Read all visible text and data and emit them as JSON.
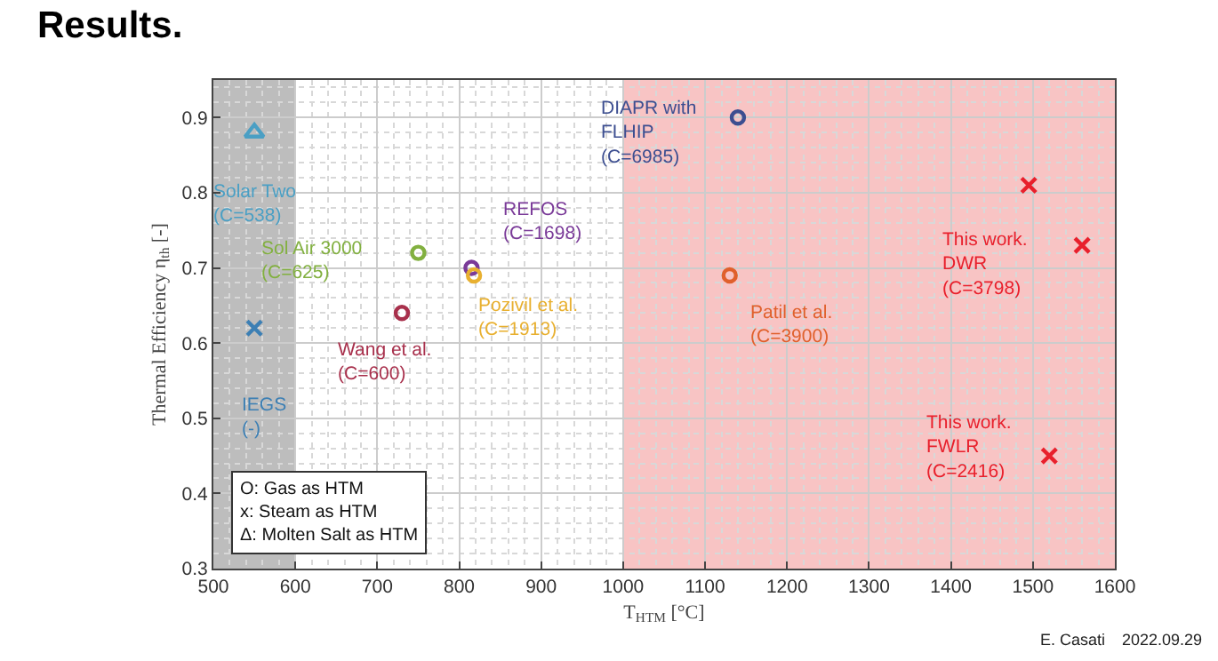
{
  "chart_data": {
    "type": "scatter",
    "title": "Results.",
    "xlabel": "T$_{HTM}$ [°C]",
    "ylabel": "Thermal Efficiency η$_{th}$ [-]",
    "xlim": [
      500,
      1600
    ],
    "xticks": [
      500,
      600,
      700,
      800,
      900,
      1000,
      1100,
      1200,
      1300,
      1400,
      1500,
      1600
    ],
    "ylim": [
      0.3,
      0.95
    ],
    "yticks": [
      0.3,
      0.4,
      0.5,
      0.6,
      0.7,
      0.8,
      0.9
    ],
    "grid": true,
    "legend": false,
    "bands": [
      {
        "axis": "x",
        "from": 500,
        "to": 600,
        "color": "#bdbdbd"
      },
      {
        "axis": "x",
        "from": 1000,
        "to": 1600,
        "color": "#f8c4c4"
      }
    ],
    "series": [
      {
        "name": "Solar Two\n(C=538)",
        "color": "#4a9fc4",
        "marker": "triangle",
        "x": [
          550
        ],
        "values": [
          0.88
        ]
      },
      {
        "name": "IEGS\n(-)",
        "color": "#3c7fb4",
        "marker": "cross",
        "x": [
          550
        ],
        "values": [
          0.62
        ]
      },
      {
        "name": "Sol Air 3000\n(C=625)",
        "color": "#82b040",
        "marker": "circle",
        "x": [
          750
        ],
        "values": [
          0.72
        ]
      },
      {
        "name": "Wang et al.\n(C=600)",
        "color": "#a8304c",
        "marker": "circle",
        "x": [
          730
        ],
        "values": [
          0.64
        ]
      },
      {
        "name": "REFOS\n(C=1698)",
        "color": "#7a3a98",
        "marker": "circle",
        "x": [
          815
        ],
        "values": [
          0.7
        ]
      },
      {
        "name": "Pozivil et al.\n(C=1913)",
        "color": "#e8b030",
        "marker": "circle",
        "x": [
          818
        ],
        "values": [
          0.69
        ]
      },
      {
        "name": "DIAPR with\nFLHIP\n(C=6985)",
        "color": "#3c4e90",
        "marker": "circle",
        "x": [
          1140
        ],
        "values": [
          0.9
        ]
      },
      {
        "name": "Patil et al.\n(C=3900)",
        "color": "#e0602c",
        "marker": "circle",
        "x": [
          1130
        ],
        "values": [
          0.69
        ]
      },
      {
        "name": "This work.\nDWR\n(C=3798)",
        "color": "#e8202c",
        "marker": "cross",
        "x": [
          1495,
          1560
        ],
        "values": [
          0.81,
          0.73
        ]
      },
      {
        "name": "This work.\nFWLR\n(C=2416)",
        "color": "#e8202c",
        "marker": "cross",
        "x": [
          1520
        ],
        "values": [
          0.45
        ]
      }
    ],
    "annotations": [
      "O: Gas as HTM\nx: Steam as HTM\nΔ: Molten Salt as HTM",
      "E. Casati",
      "2022.09.29"
    ]
  }
}
